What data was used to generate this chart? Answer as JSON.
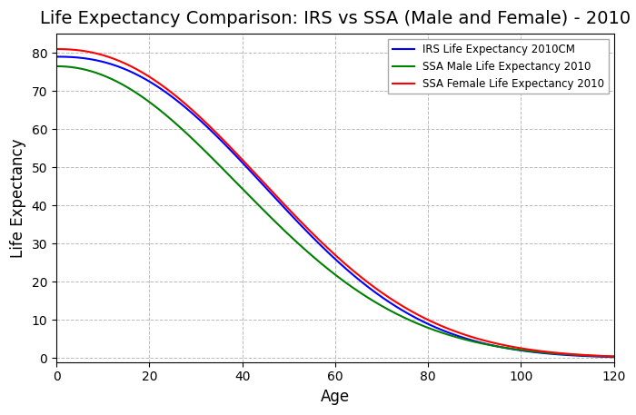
{
  "title": "Life Expectancy Comparison: IRS vs SSA (Male and Female) - 2010",
  "xlabel": "Age",
  "ylabel": "Life Expectancy",
  "xlim": [
    0,
    120
  ],
  "ylim": [
    -1,
    85
  ],
  "xticks": [
    0,
    20,
    40,
    60,
    80,
    100,
    120
  ],
  "yticks": [
    0,
    10,
    20,
    30,
    40,
    50,
    60,
    70,
    80
  ],
  "grid_color": "#bbbbbb",
  "background_color": "#ffffff",
  "legend_labels": [
    "IRS Life Expectancy 2010CM",
    "SSA Male Life Expectancy 2010",
    "SSA Female Life Expectancy 2010"
  ],
  "line_colors": [
    "blue",
    "green",
    "red"
  ],
  "title_fontsize": 14,
  "axis_label_fontsize": 12,
  "irs_v0": 79.0,
  "irs_k": 0.088,
  "irs_m": 82.0,
  "ssa_male_v0": 76.5,
  "ssa_male_k": 0.095,
  "ssa_male_m": 80.0,
  "ssa_female_v0": 81.0,
  "ssa_female_k": 0.082,
  "ssa_female_m": 84.0
}
